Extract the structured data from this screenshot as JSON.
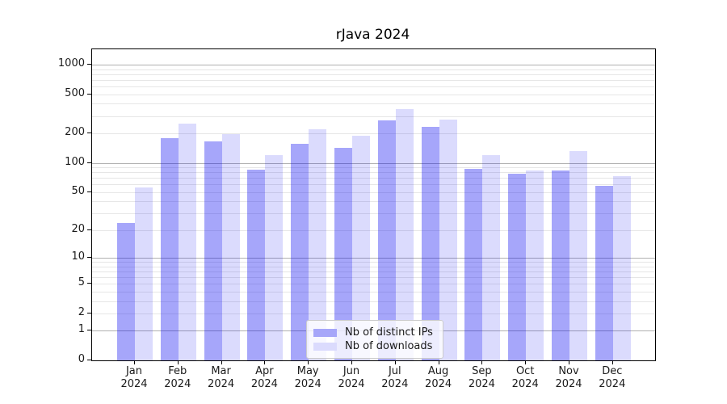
{
  "title": "rJava 2024",
  "chart_data": {
    "type": "bar",
    "title": "rJava 2024",
    "categories": [
      "Jan",
      "Feb",
      "Mar",
      "Apr",
      "May",
      "Jun",
      "Jul",
      "Aug",
      "Sep",
      "Oct",
      "Nov",
      "Dec"
    ],
    "year_sublabel": "2024",
    "series": [
      {
        "name": "Nb of distinct IPs",
        "color": "#a6a6f9",
        "bar_fill": "rgba(0,0,240,0.35)",
        "values": [
          24,
          178,
          165,
          85,
          157,
          143,
          269,
          234,
          87,
          77,
          84,
          58
        ]
      },
      {
        "name": "Nb of downloads",
        "color": "#dbdbfd",
        "bar_fill": "rgba(0,0,240,0.14)",
        "values": [
          56,
          250,
          197,
          120,
          220,
          190,
          355,
          278,
          120,
          84,
          131,
          73
        ]
      }
    ],
    "yscale": "log(value+1)",
    "yticks": [
      0,
      1,
      2,
      5,
      10,
      20,
      50,
      100,
      200,
      500,
      1000
    ],
    "major_gridlines": [
      1,
      10,
      100,
      1000
    ],
    "minor_gridline_bases": [
      1,
      10,
      100
    ],
    "ylim_top_approx": 1400,
    "grid": true,
    "legend_position": "bottom-center",
    "xlabel": "",
    "ylabel": ""
  }
}
